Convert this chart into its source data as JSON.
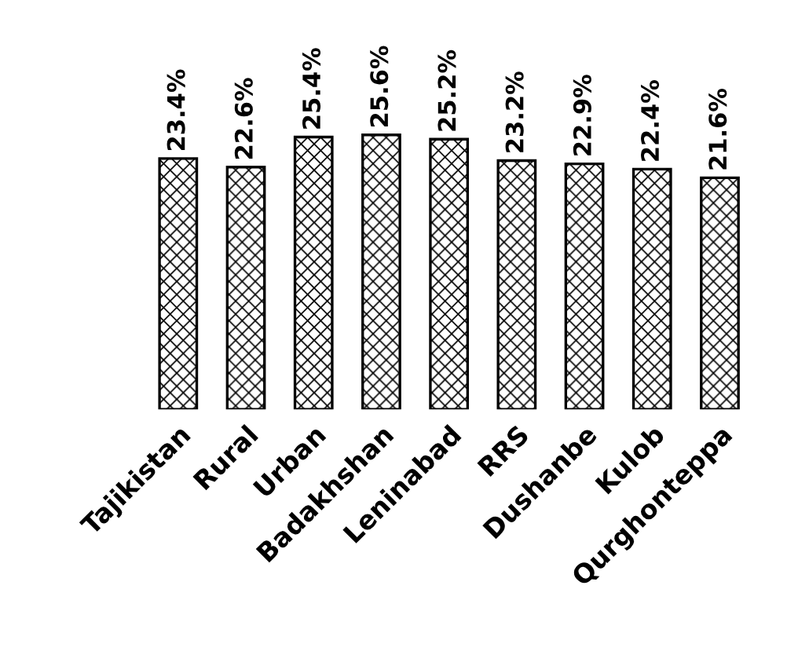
{
  "chart_data": {
    "type": "bar",
    "categories": [
      "Tajikistan",
      "Rural",
      "Urban",
      "Badakhshan",
      "Leninabad",
      "RRS",
      "Dushanbe",
      "Kulob",
      "Qurghonteppa"
    ],
    "values": [
      23.4,
      22.6,
      25.4,
      25.6,
      25.2,
      23.2,
      22.9,
      22.4,
      21.6
    ],
    "value_labels": [
      "23.4%",
      "22.6%",
      "25.4%",
      "25.6%",
      "25.2%",
      "23.2%",
      "22.9%",
      "22.4%",
      "21.6%"
    ],
    "color": "#000000",
    "grid": false,
    "legend": false
  }
}
